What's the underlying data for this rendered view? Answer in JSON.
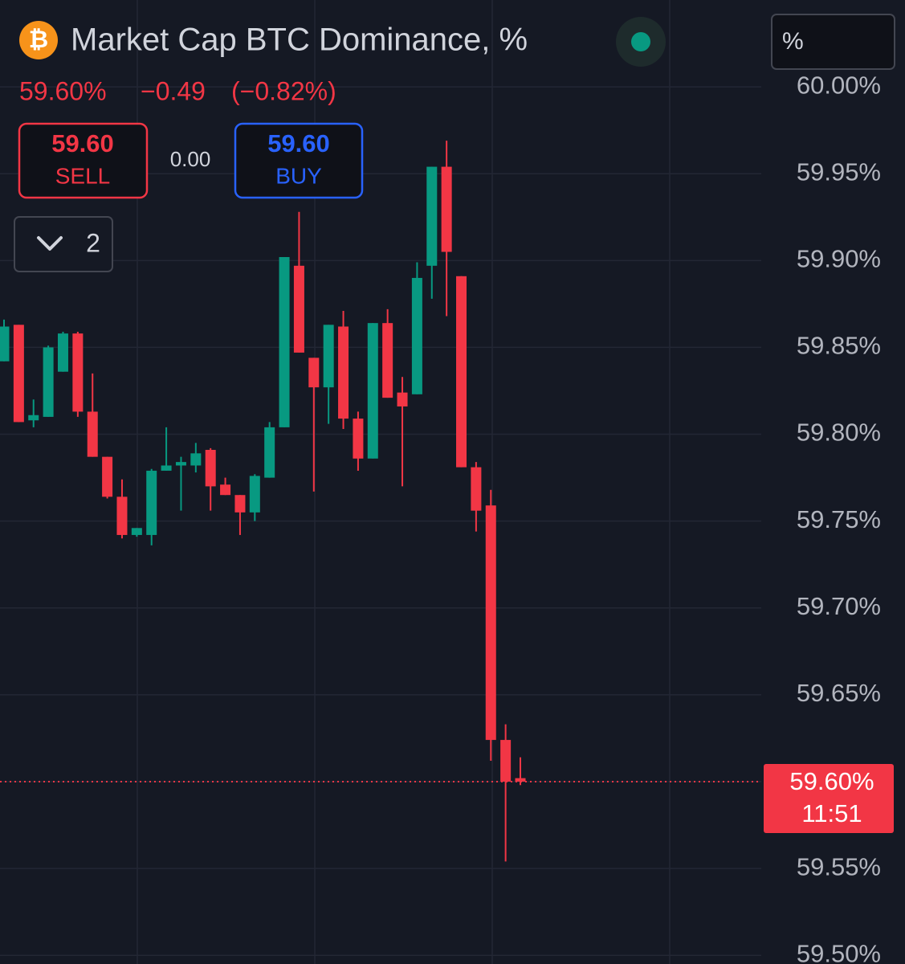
{
  "chart_data": {
    "type": "candlestick",
    "title": "Market Cap BTC Dominance, %",
    "last_label": "59.60%",
    "change_label": "−0.49",
    "change_pct_label": "(−0.82%)",
    "sell": {
      "price": "59.60",
      "label": "SELL"
    },
    "spread": "0.00",
    "buy": {
      "price": "59.60",
      "label": "BUY"
    },
    "indicator_count": "2",
    "scale_mode": "%",
    "up_color": "#089981",
    "down_color": "#f23645",
    "grid": true,
    "ylim": [
      59.495,
      60.05
    ],
    "yticks": [
      {
        "value": 59.5,
        "label": "59.50%"
      },
      {
        "value": 59.55,
        "label": "59.55%"
      },
      {
        "value": 59.6,
        "label": "59.60%"
      },
      {
        "value": 59.65,
        "label": "59.65%"
      },
      {
        "value": 59.7,
        "label": "59.70%"
      },
      {
        "value": 59.75,
        "label": "59.75%"
      },
      {
        "value": 59.8,
        "label": "59.80%"
      },
      {
        "value": 59.85,
        "label": "59.85%"
      },
      {
        "value": 59.9,
        "label": "59.90%"
      },
      {
        "value": 59.95,
        "label": "59.95%"
      },
      {
        "value": 60.0,
        "label": "60.00%"
      }
    ],
    "current": {
      "value": 59.6,
      "label": "59.60%",
      "countdown": "11:51"
    },
    "open": [
      59.842,
      59.863,
      59.808,
      59.81,
      59.836,
      59.858,
      59.813,
      59.787,
      59.764,
      59.742,
      59.742,
      59.779,
      59.782,
      59.782,
      59.791,
      59.771,
      59.765,
      59.755,
      59.775,
      59.804,
      59.897,
      59.844,
      59.827,
      59.862,
      59.809,
      59.786,
      59.864,
      59.824,
      59.823,
      59.897,
      59.954,
      59.891,
      59.781,
      59.759,
      59.624,
      59.602
    ],
    "high": [
      59.866,
      59.863,
      59.82,
      59.851,
      59.859,
      59.859,
      59.835,
      59.787,
      59.774,
      59.746,
      59.78,
      59.804,
      59.787,
      59.795,
      59.792,
      59.775,
      59.765,
      59.777,
      59.807,
      59.902,
      59.928,
      59.844,
      59.863,
      59.871,
      59.813,
      59.864,
      59.872,
      59.833,
      59.899,
      59.954,
      59.969,
      59.891,
      59.784,
      59.768,
      59.633,
      59.614
    ],
    "low": [
      59.842,
      59.807,
      59.804,
      59.81,
      59.836,
      59.81,
      59.787,
      59.763,
      59.74,
      59.741,
      59.736,
      59.779,
      59.756,
      59.778,
      59.756,
      59.765,
      59.742,
      59.75,
      59.775,
      59.804,
      59.847,
      59.767,
      59.806,
      59.803,
      59.779,
      59.786,
      59.821,
      59.77,
      59.823,
      59.878,
      59.868,
      59.781,
      59.744,
      59.612,
      59.554,
      59.598
    ],
    "close": [
      59.862,
      59.807,
      59.811,
      59.85,
      59.858,
      59.813,
      59.787,
      59.764,
      59.742,
      59.746,
      59.779,
      59.782,
      59.784,
      59.789,
      59.77,
      59.765,
      59.755,
      59.776,
      59.804,
      59.902,
      59.847,
      59.827,
      59.863,
      59.809,
      59.786,
      59.864,
      59.821,
      59.816,
      59.89,
      59.954,
      59.905,
      59.781,
      59.756,
      59.624,
      59.6,
      59.6
    ]
  }
}
